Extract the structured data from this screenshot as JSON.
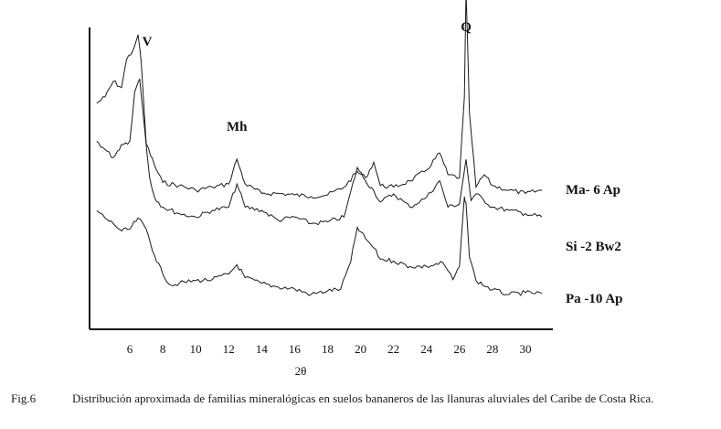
{
  "chart_data": {
    "type": "line",
    "xlabel": "2θ",
    "ylabel": "",
    "xlim": [
      4,
      31
    ],
    "xticks": [
      6,
      8,
      10,
      12,
      14,
      16,
      18,
      20,
      22,
      24,
      26,
      28,
      30
    ],
    "grid": false,
    "peak_labels": [
      {
        "text": "V",
        "x": 6.5
      },
      {
        "text": "Mh",
        "x": 12.5
      },
      {
        "text": "Q",
        "x": 26.4
      }
    ],
    "series": [
      {
        "name": "Ma- 6 Ap",
        "x": [
          4,
          4.5,
          5,
          5.5,
          5.8,
          6.2,
          6.5,
          6.7,
          7,
          7.5,
          8,
          9,
          10,
          11,
          12,
          12.5,
          13,
          14,
          15,
          16,
          17,
          18,
          19,
          19.8,
          20.3,
          20.8,
          21.2,
          22,
          23,
          24,
          24.8,
          25.3,
          26,
          26.3,
          26.4,
          26.6,
          27,
          27.5,
          28,
          29,
          30,
          31
        ],
        "values": [
          0.56,
          0.6,
          0.7,
          0.66,
          0.84,
          0.9,
          1.0,
          0.82,
          0.3,
          0.16,
          0.05,
          0.03,
          0.0,
          0.02,
          0.04,
          0.2,
          0.04,
          -0.02,
          -0.02,
          -0.03,
          -0.04,
          -0.03,
          0.02,
          0.12,
          0.08,
          0.18,
          0.03,
          0.02,
          0.06,
          0.13,
          0.24,
          0.1,
          0.08,
          0.6,
          1.28,
          0.5,
          0.02,
          0.1,
          0.03,
          0.0,
          -0.02,
          0.0
        ]
      },
      {
        "name": "Si -2 Bw2",
        "x": [
          4,
          4.5,
          5,
          5.5,
          6,
          6.3,
          6.6,
          6.9,
          7.2,
          7.5,
          8,
          9,
          10,
          11,
          12,
          12.5,
          13,
          14,
          15,
          16,
          17,
          18,
          19,
          19.8,
          20.3,
          20.8,
          21.2,
          22,
          23,
          24,
          24.8,
          25.3,
          26,
          26.4,
          26.7,
          27,
          28,
          29,
          30,
          31
        ],
        "values": [
          0.62,
          0.57,
          0.52,
          0.6,
          0.62,
          0.92,
          1.0,
          0.7,
          0.4,
          0.28,
          0.22,
          0.18,
          0.16,
          0.2,
          0.22,
          0.36,
          0.22,
          0.2,
          0.14,
          0.16,
          0.12,
          0.13,
          0.16,
          0.46,
          0.38,
          0.32,
          0.25,
          0.3,
          0.22,
          0.28,
          0.38,
          0.22,
          0.24,
          0.51,
          0.26,
          0.3,
          0.22,
          0.2,
          0.18,
          0.16
        ]
      },
      {
        "name": "Pa -10 Ap",
        "x": [
          4,
          4.5,
          5,
          5.5,
          6,
          6.5,
          7,
          7.5,
          8,
          8.5,
          9,
          10,
          11,
          12,
          12.5,
          13,
          14,
          15,
          16,
          17,
          18,
          18.8,
          19.4,
          19.8,
          20.3,
          20.8,
          21.2,
          22,
          23,
          24,
          25,
          25.6,
          26,
          26.3,
          26.4,
          26.6,
          27,
          28,
          29,
          30,
          31
        ],
        "values": [
          0.9,
          0.82,
          0.76,
          0.68,
          0.7,
          0.82,
          0.7,
          0.42,
          0.22,
          0.1,
          0.12,
          0.15,
          0.16,
          0.22,
          0.32,
          0.18,
          0.12,
          0.08,
          0.06,
          0.0,
          0.04,
          0.06,
          0.35,
          0.72,
          0.6,
          0.5,
          0.38,
          0.36,
          0.3,
          0.3,
          0.34,
          0.16,
          0.3,
          1.05,
          0.98,
          0.4,
          0.15,
          0.05,
          0.0,
          0.02,
          0.01
        ]
      }
    ]
  },
  "caption": {
    "label": "Fig.6",
    "text": "Distribución aproximada de familias mineralógicas en suelos bananeros de las llanuras aluviales del Caribe de Costa Rica."
  }
}
